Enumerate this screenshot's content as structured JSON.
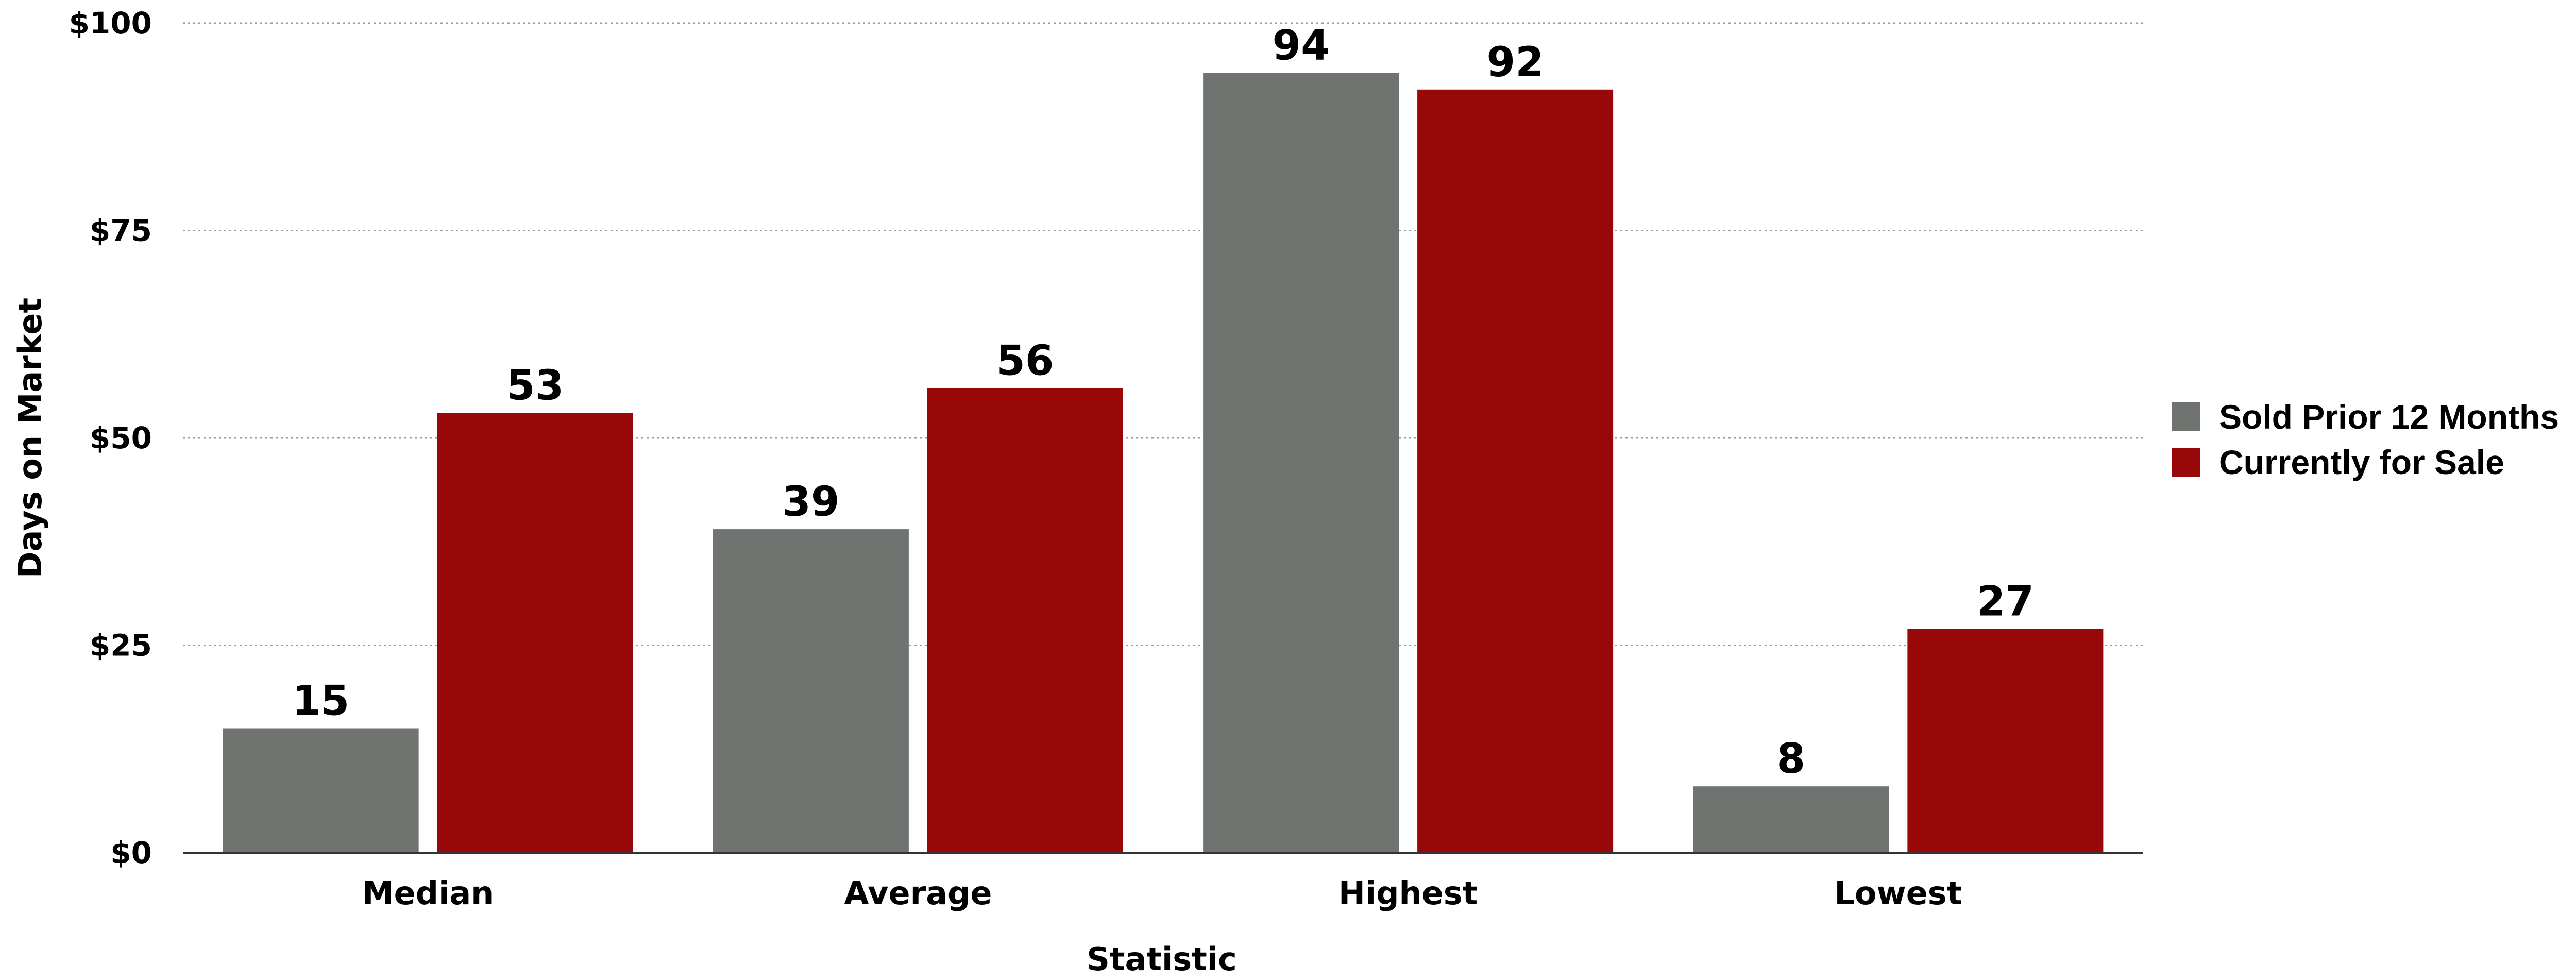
{
  "chart_data": {
    "type": "bar",
    "title": "",
    "xlabel": "Statistic",
    "ylabel": "Days on Market",
    "categories": [
      "Median",
      "Average",
      "Highest",
      "Lowest"
    ],
    "series": [
      {
        "name": "Sold Prior 12 Months",
        "values": [
          15,
          39,
          94,
          8
        ],
        "color": "#6f7471"
      },
      {
        "name": "Currently for Sale",
        "values": [
          53,
          56,
          92,
          27
        ],
        "color": "#990808"
      }
    ],
    "ylim": [
      0,
      100
    ],
    "yticks": [
      0,
      25,
      50,
      75,
      100
    ],
    "ytick_labels": [
      "$0",
      "$25",
      "$50",
      "$75",
      "$100"
    ],
    "grid": true,
    "grid_style": "dotted",
    "legend_position": "right",
    "data_labels": true
  }
}
